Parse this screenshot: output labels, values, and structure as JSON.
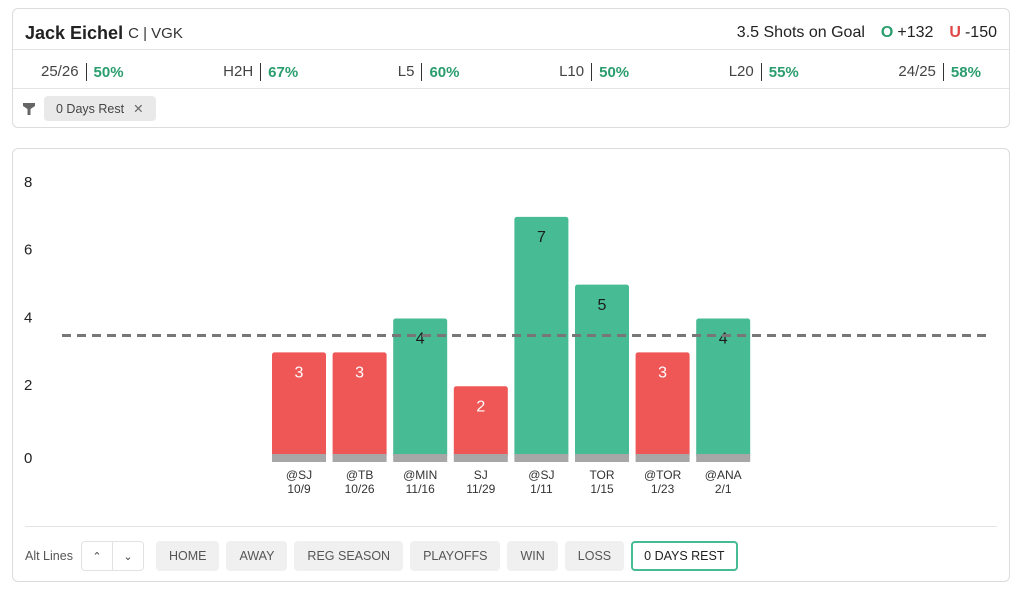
{
  "header": {
    "player": "Jack Eichel",
    "position": "C | VGK",
    "line": 3.5,
    "stat": "Shots on Goal",
    "over_label": "O",
    "over_odds": "+132",
    "under_label": "U",
    "under_odds": "-150"
  },
  "splits": [
    {
      "label": "25/26",
      "value": "50%"
    },
    {
      "label": "H2H",
      "value": "67%"
    },
    {
      "label": "L5",
      "value": "60%"
    },
    {
      "label": "L10",
      "value": "50%"
    },
    {
      "label": "L20",
      "value": "55%"
    },
    {
      "label": "24/25",
      "value": "58%"
    }
  ],
  "filter_chip": "0 Days Rest",
  "chart_data": {
    "type": "bar",
    "categories": [
      "@SJ",
      "@TB",
      "@MIN",
      "SJ",
      "@SJ",
      "TOR",
      "@TOR",
      "@ANA"
    ],
    "dates": [
      "10/9",
      "10/26",
      "11/16",
      "11/29",
      "1/11",
      "1/15",
      "1/23",
      "2/1"
    ],
    "values": [
      3,
      3,
      4,
      2,
      7,
      5,
      3,
      4
    ],
    "over_color": "#47bb93",
    "under_color": "#ef5656",
    "ylim": [
      0,
      8
    ],
    "yticks": [
      0,
      2,
      4,
      6,
      8
    ]
  },
  "footer": {
    "alt_lines": "Alt Lines",
    "buttons": [
      "HOME",
      "AWAY",
      "REG SEASON",
      "PLAYOFFS",
      "WIN",
      "LOSS",
      "0 DAYS REST"
    ],
    "active": 6
  }
}
